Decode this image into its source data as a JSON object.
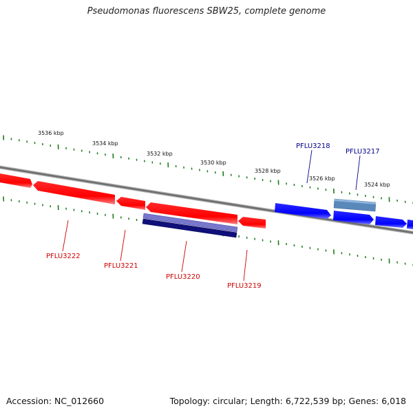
{
  "title": "Pseudomonas fluorescens SBW25, complete genome",
  "footer": {
    "accession": "Accession: NC_012660",
    "summary": "Topology: circular; Length: 6,722,539 bp; Genes: 6,018"
  },
  "ticks": [
    {
      "label": "3536 kbp"
    },
    {
      "label": "3534 kbp"
    },
    {
      "label": "3532 kbp"
    },
    {
      "label": "3530 kbp"
    },
    {
      "label": "3528 kbp"
    },
    {
      "label": "3526 kbp"
    },
    {
      "label": "3524 kbp"
    }
  ],
  "genes": {
    "forward": [
      {
        "name": "PFLU3218",
        "color": "#0000ff"
      },
      {
        "name": "PFLU3217",
        "color": "#0000ff"
      }
    ],
    "reverse": [
      {
        "name": "PFLU3222",
        "color": "#ff0000"
      },
      {
        "name": "PFLU3221",
        "color": "#ff0000"
      },
      {
        "name": "PFLU3220",
        "color": "#ff0000"
      },
      {
        "name": "PFLU3219",
        "color": "#ff0000"
      }
    ]
  },
  "colors": {
    "forward_label": "#00008b",
    "reverse_label": "#cc0000",
    "tick": "#1a7a1a",
    "backbone": "#808080"
  }
}
